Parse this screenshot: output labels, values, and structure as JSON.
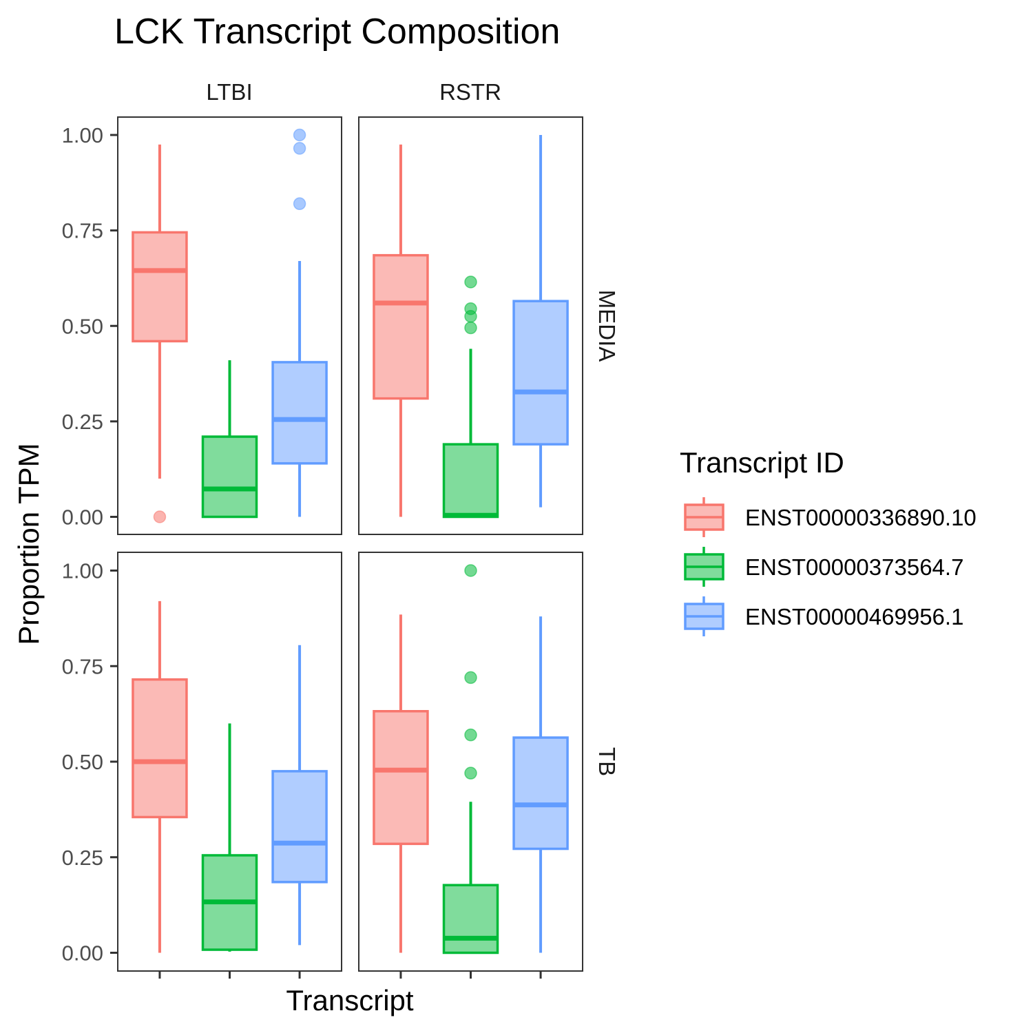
{
  "chart_data": {
    "type": "boxplot",
    "title": "LCK Transcript Composition",
    "xlabel": "Transcript",
    "ylabel": "Proportion TPM",
    "ylim": [
      0,
      1
    ],
    "y_ticks": [
      "0.00",
      "0.25",
      "0.50",
      "0.75",
      "1.00"
    ],
    "y_tick_values": [
      0,
      0.25,
      0.5,
      0.75,
      1.0
    ],
    "grid": false,
    "facet_cols": [
      "LTBI",
      "RSTR"
    ],
    "facet_rows": [
      "MEDIA",
      "TB"
    ],
    "legend": {
      "title": "Transcript ID",
      "placement": "right",
      "entries": [
        "ENST00000336890.10",
        "ENST00000373564.7",
        "ENST00000469956.1"
      ]
    },
    "series_colors": [
      "#F8766D",
      "#00BA38",
      "#619CFF"
    ],
    "series_fills": [
      "#FBBAB6",
      "#80DC9C",
      "#B0CDFF"
    ],
    "panels": [
      {
        "col": "LTBI",
        "row": "MEDIA",
        "boxes": [
          {
            "series": "ENST00000336890.10",
            "whisker_low": 0.1,
            "q1": 0.46,
            "median": 0.645,
            "q3": 0.745,
            "whisker_high": 0.975,
            "outliers": [
              0.0
            ]
          },
          {
            "series": "ENST00000373564.7",
            "whisker_low": 0.0,
            "q1": 0.0,
            "median": 0.073,
            "q3": 0.21,
            "whisker_high": 0.41,
            "outliers": []
          },
          {
            "series": "ENST00000469956.1",
            "whisker_low": 0.0,
            "q1": 0.14,
            "median": 0.255,
            "q3": 0.405,
            "whisker_high": 0.67,
            "outliers": [
              0.82,
              0.965,
              1.0
            ]
          }
        ]
      },
      {
        "col": "RSTR",
        "row": "MEDIA",
        "boxes": [
          {
            "series": "ENST00000336890.10",
            "whisker_low": 0.0,
            "q1": 0.31,
            "median": 0.56,
            "q3": 0.685,
            "whisker_high": 0.975,
            "outliers": []
          },
          {
            "series": "ENST00000373564.7",
            "whisker_low": 0.0,
            "q1": 0.0,
            "median": 0.004,
            "q3": 0.19,
            "whisker_high": 0.44,
            "outliers": [
              0.495,
              0.525,
              0.545,
              0.615
            ]
          },
          {
            "series": "ENST00000469956.1",
            "whisker_low": 0.025,
            "q1": 0.19,
            "median": 0.327,
            "q3": 0.565,
            "whisker_high": 1.0,
            "outliers": []
          }
        ]
      },
      {
        "col": "LTBI",
        "row": "TB",
        "boxes": [
          {
            "series": "ENST00000336890.10",
            "whisker_low": 0.0,
            "q1": 0.355,
            "median": 0.5,
            "q3": 0.715,
            "whisker_high": 0.92,
            "outliers": []
          },
          {
            "series": "ENST00000373564.7",
            "whisker_low": 0.003,
            "q1": 0.008,
            "median": 0.133,
            "q3": 0.255,
            "whisker_high": 0.6,
            "outliers": []
          },
          {
            "series": "ENST00000469956.1",
            "whisker_low": 0.02,
            "q1": 0.185,
            "median": 0.287,
            "q3": 0.475,
            "whisker_high": 0.805,
            "outliers": []
          }
        ]
      },
      {
        "col": "RSTR",
        "row": "TB",
        "boxes": [
          {
            "series": "ENST00000336890.10",
            "whisker_low": 0.0,
            "q1": 0.285,
            "median": 0.478,
            "q3": 0.632,
            "whisker_high": 0.885,
            "outliers": []
          },
          {
            "series": "ENST00000373564.7",
            "whisker_low": 0.0,
            "q1": 0.0,
            "median": 0.038,
            "q3": 0.177,
            "whisker_high": 0.395,
            "outliers": [
              0.47,
              0.57,
              0.72,
              1.0
            ]
          },
          {
            "series": "ENST00000469956.1",
            "whisker_low": 0.0,
            "q1": 0.272,
            "median": 0.387,
            "q3": 0.563,
            "whisker_high": 0.88,
            "outliers": []
          }
        ]
      }
    ]
  }
}
